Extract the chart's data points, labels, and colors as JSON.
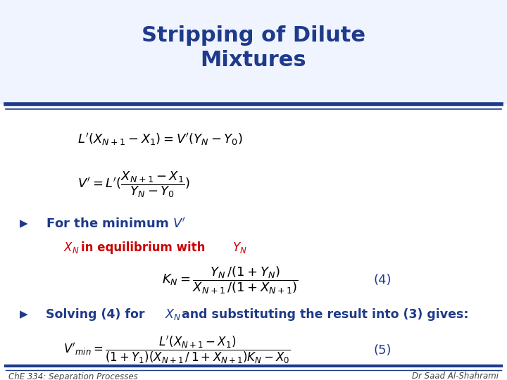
{
  "title": "Stripping of Dilute\nMixtures",
  "title_color": "#1E3A8A",
  "background_color": "#FFFFFF",
  "header_line_color": "#1E3A8A",
  "footer_line_color": "#1E3A8A",
  "bullet_color": "#1E3A8A",
  "eq_color": "#000000",
  "red_color": "#CC0000",
  "footer_left": "ChE 334: Separation Processes",
  "footer_right": "Dr Saad Al-Shahrami",
  "formula1": "$L'(X_{N+1} - X_1) = V'(Y_N - Y_0)$",
  "formula2": "$V' = L'(\\dfrac{X_{N+1} - X_1}{Y_N - Y_0})$",
  "bullet1": "For the minimum $V'$",
  "sub_bullet_red": "$X_N$",
  "sub_bullet_black": " in equilibrium with ",
  "sub_bullet_red2": "$Y_N$",
  "formula3": "$K_N = \\dfrac{Y_N\\,/(1 + Y_N)}{X_{N+1}\\,/(1 + X_{N+1})}$",
  "label4": "(4)",
  "bullet2_pre": "Solving (4) for ",
  "bullet2_xn": "$X_N$",
  "bullet2_post": " and substituting the result into (3) gives:",
  "formula5": "$V'_{min} = \\dfrac{L'(X_{N+1} - X_1)}{(1+Y_1)(X_{N+1}\\,/\\,1 + X_{N+1})K_N - X_0}$",
  "label5": "(5)"
}
